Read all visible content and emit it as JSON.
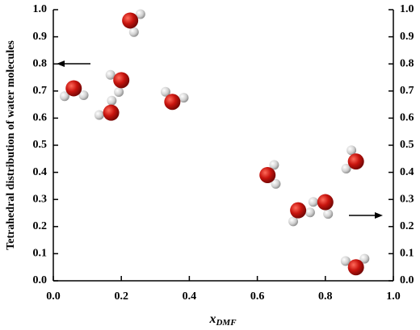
{
  "chart_data": {
    "type": "scatter",
    "y_label": "Tetrahedral distribution of water molecules",
    "x_label": {
      "main": "x",
      "sub": "DMF"
    },
    "series": [
      {
        "axis": "y",
        "x": [
          0.226,
          0.06,
          0.2,
          0.17,
          0.35
        ],
        "values": [
          0.96,
          0.71,
          0.74,
          0.62,
          0.66
        ]
      },
      {
        "axis": "y2",
        "x": [
          0.63,
          0.72,
          0.8,
          0.89,
          0.89
        ],
        "values": [
          0.39,
          0.26,
          0.29,
          0.44,
          0.05
        ]
      }
    ],
    "xlim": [
      0,
      1
    ],
    "ylim": [
      0,
      1
    ],
    "y2lim": [
      0,
      1
    ],
    "xticks": [
      {
        "value": 0,
        "label": "0.0"
      },
      0.2,
      0.4,
      0.6,
      0.8,
      {
        "value": 1,
        "label": "1.0"
      }
    ],
    "yticks": [
      {
        "value": 0,
        "label": "0.0"
      },
      0.1,
      0.2,
      0.3,
      0.4,
      0.5,
      0.6,
      0.7,
      0.8,
      0.9,
      {
        "value": 1,
        "label": "1.0"
      }
    ],
    "y2ticks": [
      {
        "value": 0,
        "label": "0.0"
      },
      0.1,
      0.2,
      0.3,
      0.4,
      0.5,
      0.6,
      0.7,
      0.8,
      0.9,
      {
        "value": 1,
        "label": "1.0"
      }
    ]
  }
}
